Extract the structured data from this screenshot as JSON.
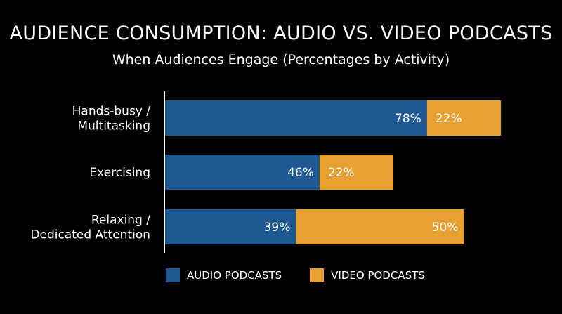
{
  "colors": {
    "audio": "#1f5993",
    "video": "#e8a032",
    "background": "#000000",
    "text": "#ffffff"
  },
  "chart_data": {
    "type": "bar",
    "orientation": "horizontal",
    "stacked": true,
    "title": "AUDIENCE CONSUMPTION: AUDIO VS. VIDEO PODCASTS",
    "subtitle": "When Audiences Engage (Percentages by Activity)",
    "categories": [
      [
        "Hands-busy /",
        "Multitasking"
      ],
      [
        "Exercising"
      ],
      [
        "Relaxing /",
        "Dedicated Attention"
      ]
    ],
    "series": [
      {
        "name": "AUDIO PODCASTS",
        "values": [
          78,
          46,
          39
        ],
        "labels": [
          "78%",
          "46%",
          "39%"
        ]
      },
      {
        "name": "VIDEO PODCASTS",
        "values": [
          22,
          22,
          50
        ],
        "labels": [
          "22%",
          "22%",
          "50%"
        ]
      }
    ],
    "xlim": [
      0,
      100
    ],
    "grid": false,
    "legend_position": "bottom"
  }
}
